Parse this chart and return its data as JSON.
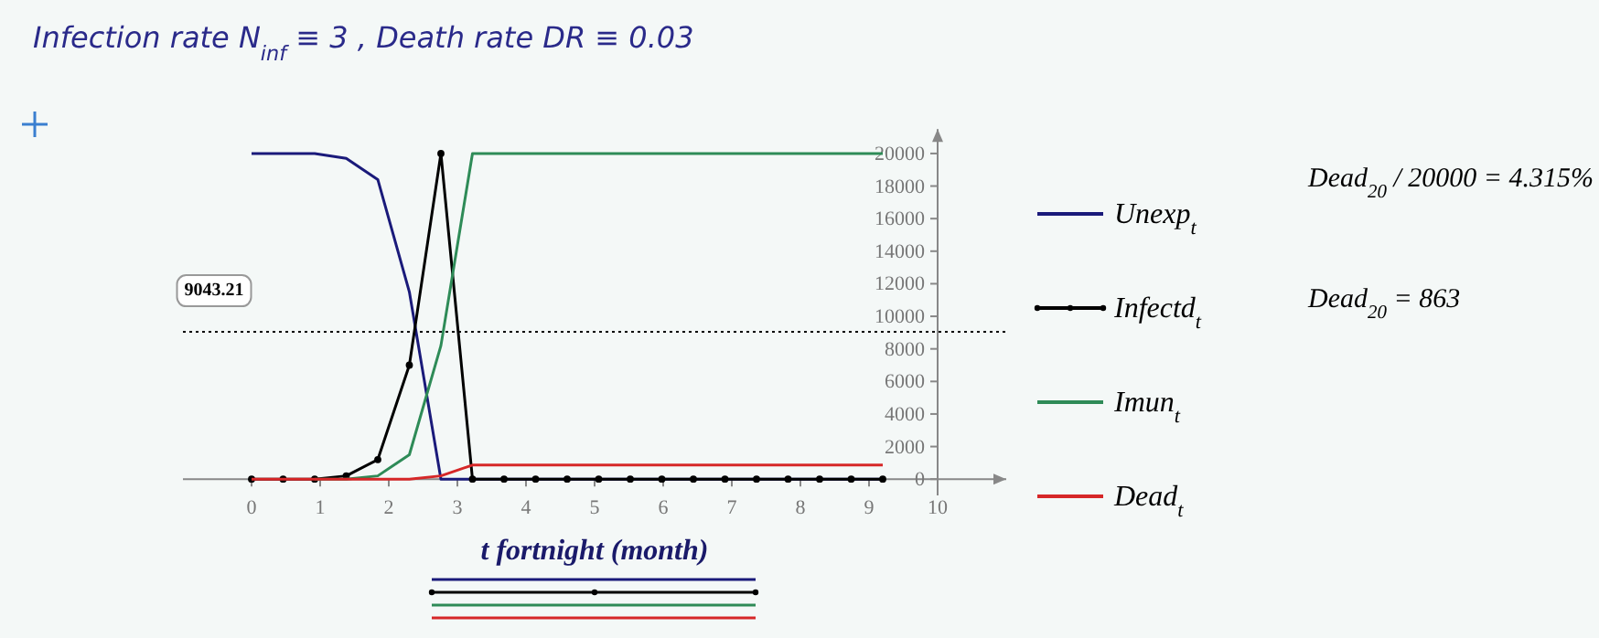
{
  "chart_data": {
    "type": "line",
    "title": "Infection rate   N$_{inf}$ ≡ 3 ,   Death rate   DR ≡ 0.03",
    "xlabel": "t fortnight  (month)",
    "x": [
      0,
      0.46,
      0.92,
      1.38,
      1.84,
      2.3,
      2.76,
      3.22,
      3.68,
      4.14,
      4.6,
      5.06,
      5.52,
      5.98,
      6.44,
      6.9,
      7.36,
      7.82,
      8.28,
      8.74,
      9.2
    ],
    "series": [
      {
        "name": "Unexp$_{t}$",
        "color": "#1a1a7a",
        "values": [
          20000,
          20000,
          20000,
          19700,
          18400,
          11500,
          0,
          0,
          0,
          0,
          0,
          0,
          0,
          0,
          0,
          0,
          0,
          0,
          0,
          0,
          0
        ]
      },
      {
        "name": "Infectd$_{t}$",
        "color": "#000000",
        "marker": "circle",
        "values": [
          0,
          0,
          0,
          200,
          1200,
          7000,
          20000,
          0,
          0,
          0,
          0,
          0,
          0,
          0,
          0,
          0,
          0,
          0,
          0,
          0,
          0
        ]
      },
      {
        "name": "Imun$_{t}$",
        "color": "#2e8b57",
        "values": [
          null,
          null,
          0,
          0,
          200,
          1500,
          8200,
          20000,
          20000,
          20000,
          20000,
          20000,
          20000,
          20000,
          20000,
          20000,
          20000,
          20000,
          20000,
          20000,
          20000
        ]
      },
      {
        "name": "Dead$_{t}$",
        "color": "#d62728",
        "values": [
          0,
          0,
          0,
          0,
          0,
          0,
          200,
          863,
          863,
          863,
          863,
          863,
          863,
          863,
          863,
          863,
          863,
          863,
          863,
          863,
          863
        ]
      }
    ],
    "xlim": [
      -1,
      11
    ],
    "xticks": [
      0,
      1,
      2,
      3,
      4,
      5,
      6,
      7,
      8,
      9,
      10
    ],
    "ylim": [
      -1000,
      21500
    ],
    "yticks": [
      0,
      2000,
      4000,
      6000,
      8000,
      10000,
      12000,
      14000,
      16000,
      18000,
      20000
    ],
    "ref_lines": [
      {
        "axis": "y",
        "value": 9043.21,
        "label": "9043.21",
        "line_style": "dotted",
        "color": "#000000"
      }
    ],
    "annotations": [
      "Dead$_{20}$ / 20000 = 4.315%",
      "Dead$_{20}$ = 863"
    ],
    "legend": "right",
    "grid": false,
    "marker": "none"
  }
}
